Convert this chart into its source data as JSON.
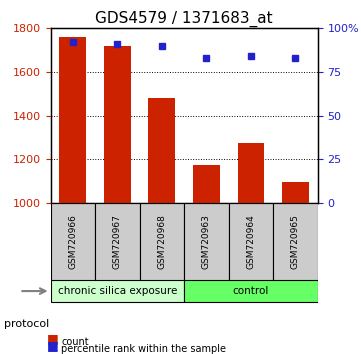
{
  "title": "GDS4579 / 1371683_at",
  "categories": [
    "GSM720966",
    "GSM720967",
    "GSM720968",
    "GSM720963",
    "GSM720964",
    "GSM720965"
  ],
  "bar_values": [
    1760,
    1720,
    1480,
    1175,
    1275,
    1095
  ],
  "percentile_values": [
    92,
    91,
    90,
    83,
    84,
    83
  ],
  "bar_color": "#cc2200",
  "blue_color": "#2222cc",
  "ymin": 1000,
  "ymax": 1800,
  "yticks_left": [
    1000,
    1200,
    1400,
    1600,
    1800
  ],
  "yticks_right": [
    0,
    25,
    50,
    75,
    100
  ],
  "group1_label": "chronic silica exposure",
  "group2_label": "control",
  "group1_indices": [
    0,
    1,
    2
  ],
  "group2_indices": [
    3,
    4,
    5
  ],
  "group1_color": "#ccffcc",
  "group2_color": "#66ff66",
  "protocol_label": "protocol",
  "legend_count": "count",
  "legend_percentile": "percentile rank within the sample",
  "bar_width": 0.6,
  "grid_color": "#000000",
  "bg_color_plot": "#ffffff",
  "bg_color_xticklabels": "#cccccc",
  "title_fontsize": 11,
  "tick_fontsize": 8,
  "label_fontsize": 8
}
